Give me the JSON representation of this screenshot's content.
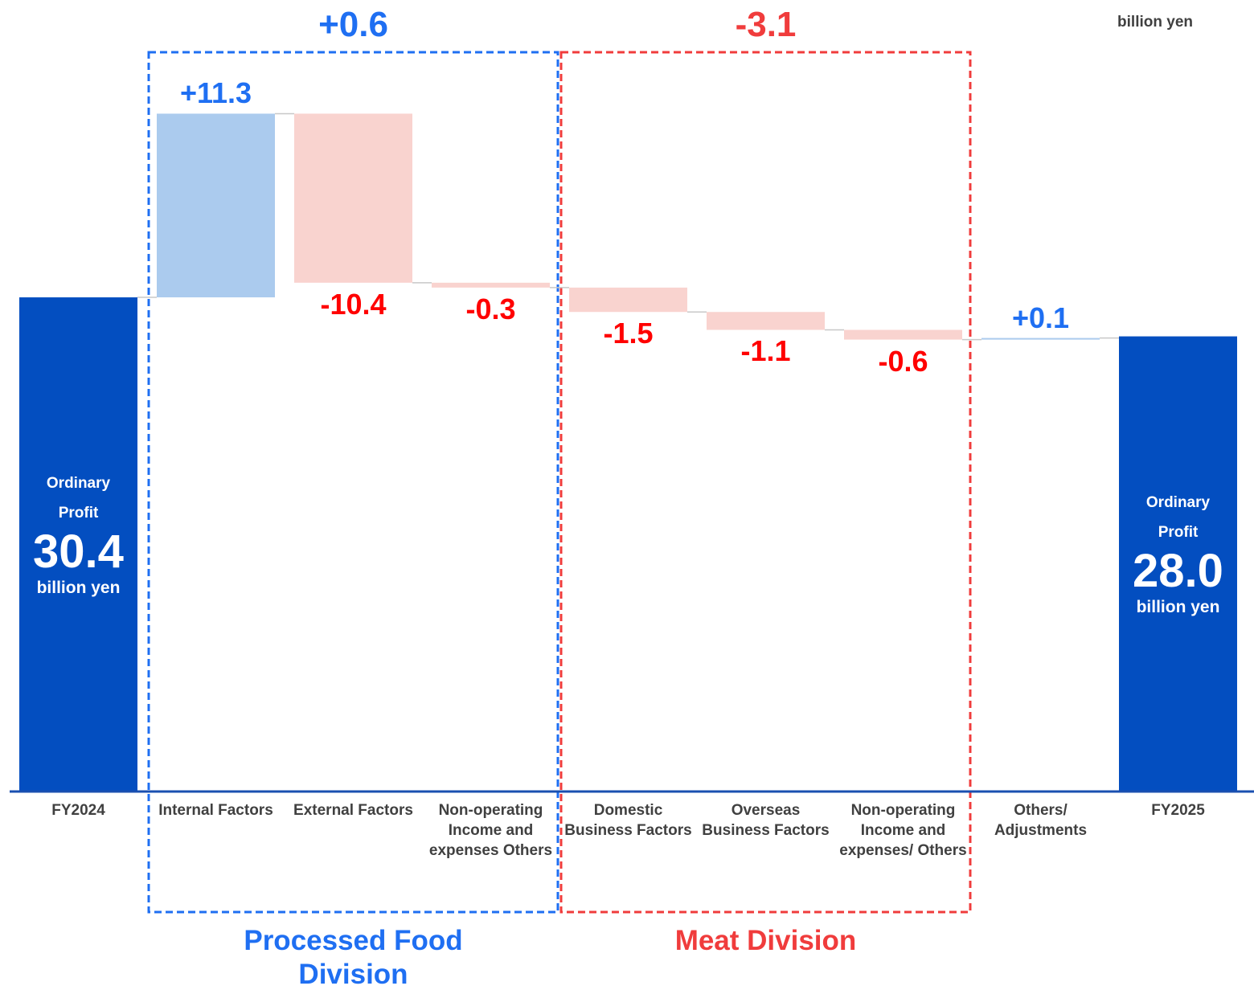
{
  "chart_data": {
    "type": "waterfall",
    "unit": "billion yen",
    "total_caption": "Ordinary Profit",
    "categories": [
      "FY2024",
      "Internal Factors",
      "External Factors",
      "Non-operating Income and expenses Others",
      "Domestic Business Factors",
      "Overseas Business Factors",
      "Non-operating Income and expenses/ Others",
      "Others/ Adjustments",
      "FY2025"
    ],
    "values": [
      30.4,
      11.3,
      -10.4,
      -0.3,
      -1.5,
      -1.1,
      -0.6,
      0.1,
      28.0
    ],
    "value_labels": [
      "30.4",
      "+11.3",
      "-10.4",
      "-0.3",
      "-1.5",
      "-1.1",
      "-0.6",
      "+0.1",
      "28.0"
    ],
    "totals": [
      0,
      8
    ],
    "colors": {
      "total": "#034ec0",
      "increase": "#abcbee",
      "decrease": "#f9d3cf",
      "increase_text": "#1f6ff2",
      "decrease_text": "#ff0000"
    },
    "groups": [
      {
        "name": "Processed Food Division",
        "change": {
          "value": 0.6,
          "label": "+0.6"
        },
        "start": 1,
        "end": 3,
        "color": "#1f6ff2"
      },
      {
        "name": "Meat Division",
        "change": {
          "value": -3.1,
          "label": "-3.1"
        },
        "start": 4,
        "end": 6,
        "color": "#f03c3c"
      }
    ],
    "ylim": [
      0,
      48
    ]
  }
}
